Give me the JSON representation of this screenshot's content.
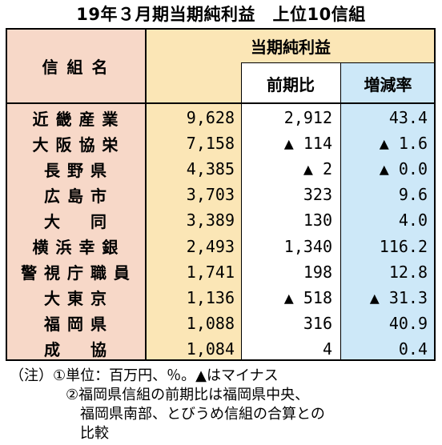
{
  "title": "19年３月期当期純利益　上位10信組",
  "header": {
    "name_col": "信 組 名",
    "profit_col": "当期純利益",
    "prev_ratio_col": "前期比",
    "growth_col": "増減率"
  },
  "rows": [
    {
      "name": "近 畿 産 業",
      "profit": "9,628",
      "prev": "2,912",
      "rate": "43.4"
    },
    {
      "name": "大 阪 協 栄",
      "profit": "7,158",
      "prev": "▲ 114",
      "rate": "▲ 1.6"
    },
    {
      "name": "長 野 県",
      "profit": "4,385",
      "prev": "▲ 2",
      "rate": "▲ 0.0"
    },
    {
      "name": "広 島 市",
      "profit": "3,703",
      "prev": "323",
      "rate": "9.6"
    },
    {
      "name": "大 　 同",
      "profit": "3,389",
      "prev": "130",
      "rate": "4.0"
    },
    {
      "name": "横 浜 幸 銀",
      "profit": "2,493",
      "prev": "1,340",
      "rate": "116.2"
    },
    {
      "name": "警 視 庁 職 員",
      "profit": "1,741",
      "prev": "198",
      "rate": "12.8"
    },
    {
      "name": "大 東 京",
      "profit": "1,136",
      "prev": "▲ 518",
      "rate": "▲ 31.3"
    },
    {
      "name": "福 岡 県",
      "profit": "1,088",
      "prev": "316",
      "rate": "40.9"
    },
    {
      "name": "成 　 協",
      "profit": "1,084",
      "prev": "4",
      "rate": "0.4"
    }
  ],
  "notes": {
    "line1": "（注）①単位：百万円、％。▲はマイナス",
    "line2": "②福岡県信組の前期比は福岡県中央、",
    "line3": "福岡県南部、とびうめ信組の合算との",
    "line4": "比較"
  },
  "colors": {
    "name_bg": "#f7d8c8",
    "profit_bg": "#fbe6b6",
    "growth_bg": "#cde8f8"
  }
}
